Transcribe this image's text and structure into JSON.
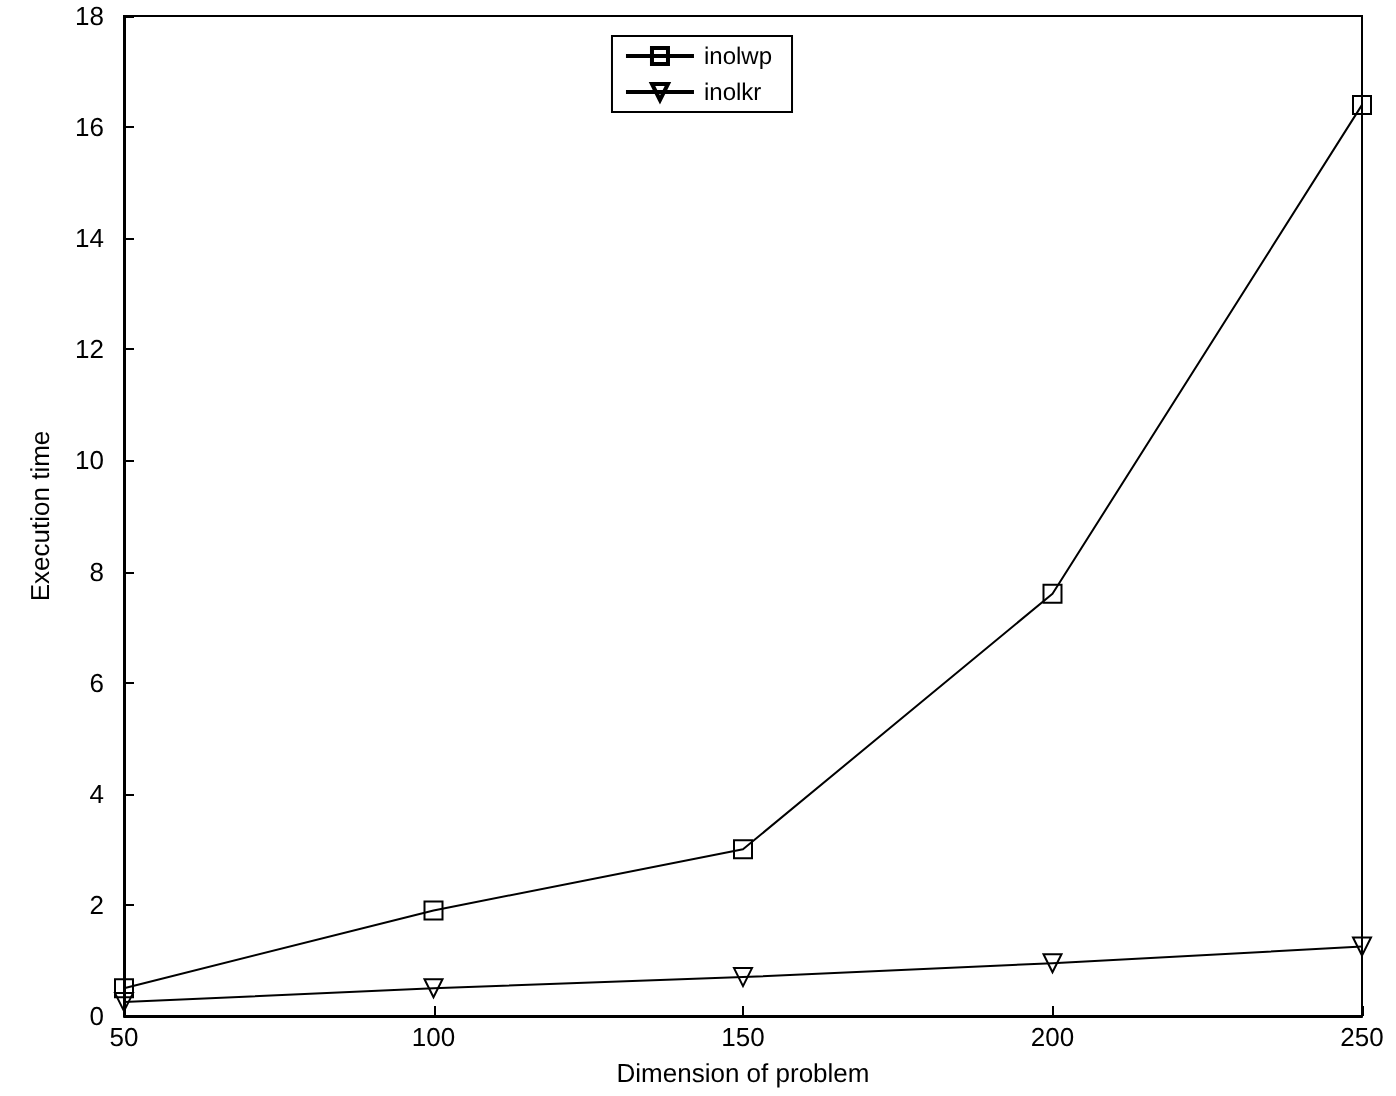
{
  "chart_data": {
    "type": "line",
    "xlabel": "Dimension of problem",
    "ylabel": "Execution time",
    "x": [
      50,
      100,
      150,
      200,
      250
    ],
    "series": [
      {
        "name": "inolwp",
        "color": "#000000",
        "marker": "square",
        "values": [
          0.5,
          1.9,
          3.0,
          7.6,
          16.4
        ]
      },
      {
        "name": "inolkr",
        "color": "#000000",
        "marker": "triangle",
        "values": [
          0.25,
          0.5,
          0.7,
          0.95,
          1.25
        ]
      }
    ],
    "xlim": [
      50,
      250
    ],
    "xticks": [
      50,
      100,
      150,
      200,
      250
    ],
    "ylim": [
      0,
      18
    ],
    "yticks": [
      0,
      2,
      4,
      6,
      8,
      10,
      12,
      14,
      16,
      18
    ],
    "grid": false,
    "legend": "top",
    "line_style": "solid"
  }
}
